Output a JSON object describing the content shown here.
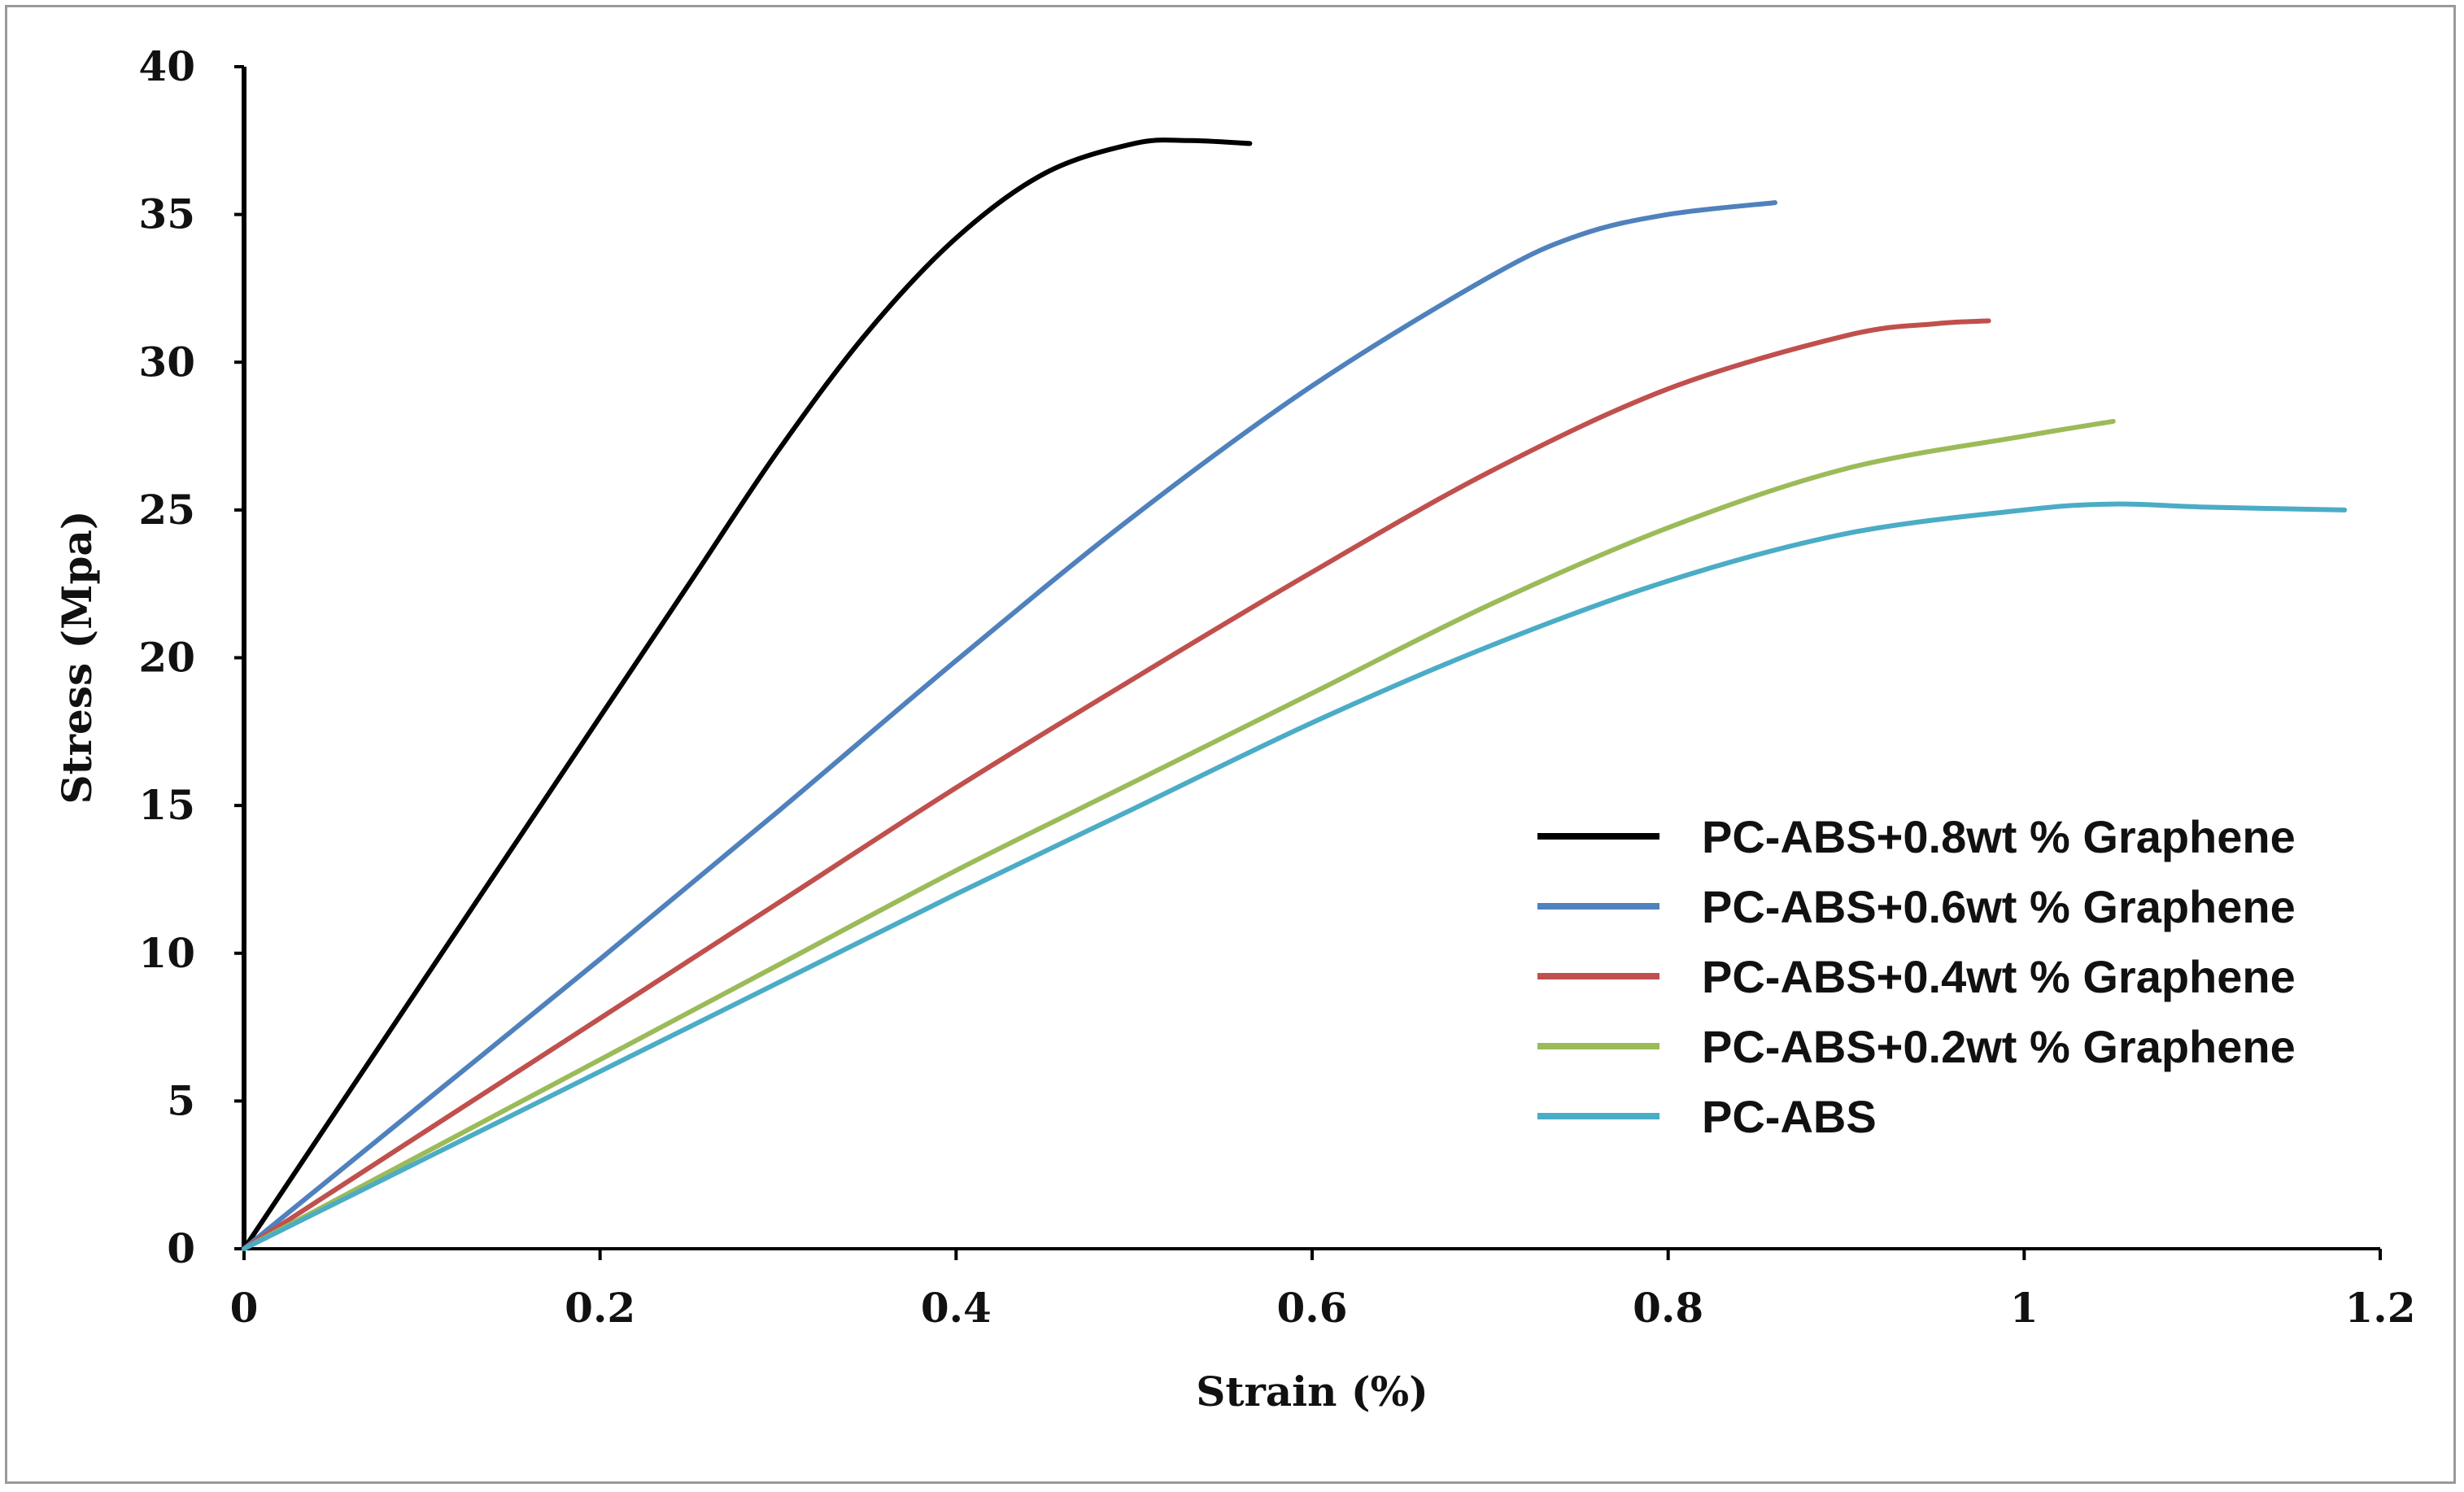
{
  "chart_data": {
    "type": "line",
    "title": "",
    "xlabel": "Strain (%)",
    "ylabel": "Stress (Mpa)",
    "xlim": [
      0,
      1.2
    ],
    "ylim": [
      0,
      40
    ],
    "xticks": [
      "0",
      "0.2",
      "0.4",
      "0.6",
      "0.8",
      "1",
      "1.2"
    ],
    "yticks": [
      "0",
      "5",
      "10",
      "15",
      "20",
      "25",
      "30",
      "35",
      "40"
    ],
    "grid": false,
    "legend_position": "lower-right",
    "series": [
      {
        "name": "PC-ABS+0.8wt % Graphene",
        "color": "#000000",
        "x": [
          0,
          0.05,
          0.1,
          0.15,
          0.2,
          0.25,
          0.3,
          0.35,
          0.4,
          0.45,
          0.5,
          0.53,
          0.565
        ],
        "y": [
          0,
          4.5,
          9,
          13.5,
          18,
          22.5,
          27,
          31,
          34.2,
          36.4,
          37.4,
          37.5,
          37.4
        ]
      },
      {
        "name": "PC-ABS+0.6wt % Graphene",
        "color": "#4f81bd",
        "x": [
          0,
          0.1,
          0.2,
          0.3,
          0.4,
          0.5,
          0.6,
          0.7,
          0.75,
          0.8,
          0.86
        ],
        "y": [
          0,
          4.9,
          9.8,
          14.8,
          19.9,
          24.8,
          29.2,
          32.9,
          34.3,
          35.0,
          35.4
        ]
      },
      {
        "name": "PC-ABS+0.4wt % Graphene",
        "color": "#c0504d",
        "x": [
          0,
          0.1,
          0.2,
          0.3,
          0.4,
          0.5,
          0.6,
          0.7,
          0.8,
          0.9,
          0.95,
          0.98
        ],
        "y": [
          0,
          3.9,
          7.8,
          11.7,
          15.6,
          19.3,
          22.9,
          26.3,
          29.1,
          30.9,
          31.3,
          31.4
        ]
      },
      {
        "name": "PC-ABS+0.2wt % Graphene",
        "color": "#9bbb59",
        "x": [
          0,
          0.1,
          0.2,
          0.3,
          0.4,
          0.5,
          0.6,
          0.7,
          0.8,
          0.9,
          1.0,
          1.05
        ],
        "y": [
          0,
          3.2,
          6.4,
          9.6,
          12.8,
          15.8,
          18.8,
          21.8,
          24.4,
          26.4,
          27.5,
          28.0
        ]
      },
      {
        "name": "PC-ABS",
        "color": "#4bacc6",
        "x": [
          0,
          0.1,
          0.2,
          0.3,
          0.4,
          0.5,
          0.6,
          0.7,
          0.8,
          0.9,
          1.0,
          1.05,
          1.1,
          1.18
        ],
        "y": [
          0,
          3.0,
          6.0,
          9.0,
          12.0,
          14.9,
          17.8,
          20.4,
          22.6,
          24.2,
          25.0,
          25.2,
          25.1,
          25.0
        ]
      }
    ]
  }
}
